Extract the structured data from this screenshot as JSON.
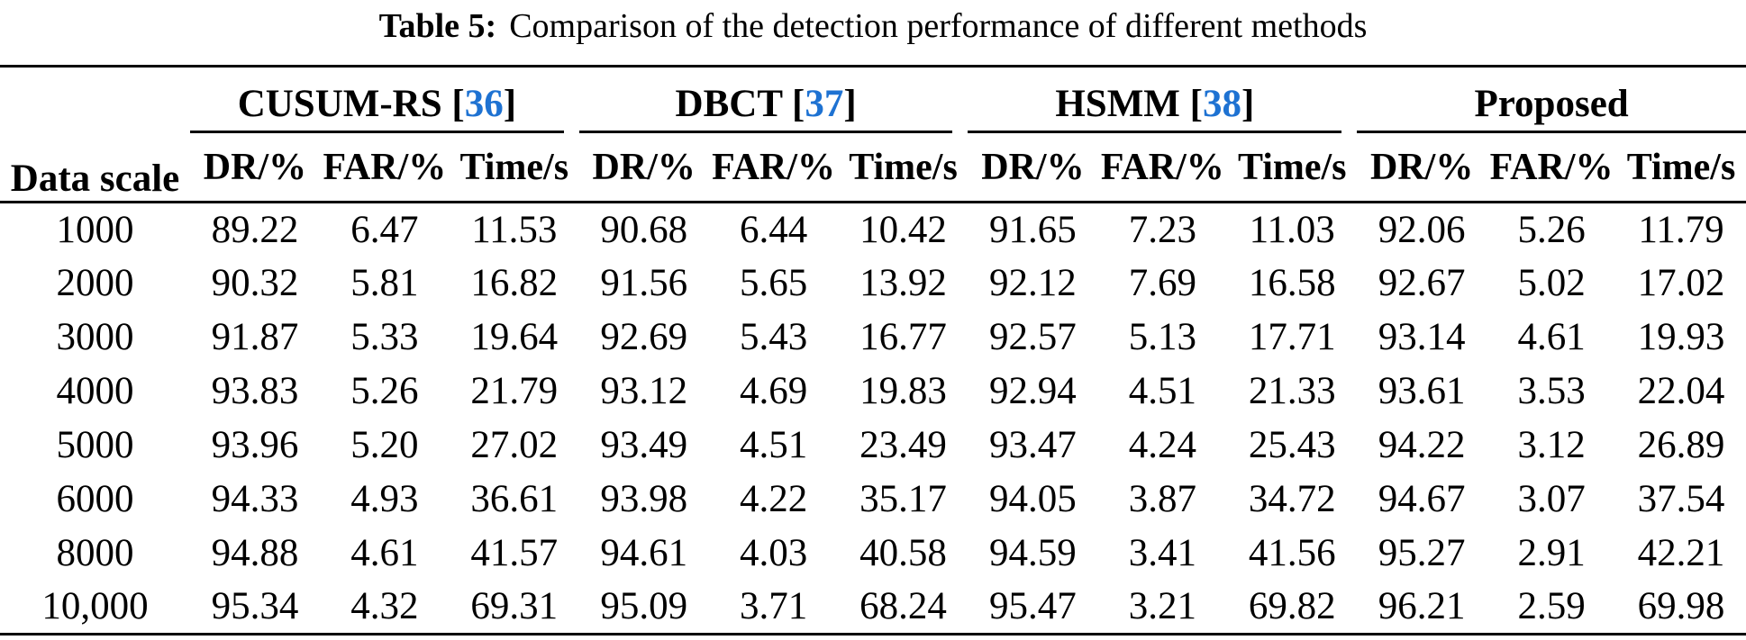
{
  "caption": {
    "label": "Table 5:",
    "text": "Comparison of the detection performance of different methods"
  },
  "table": {
    "row_header": "Data scale",
    "bracket_open": "[",
    "bracket_close": "]",
    "groups": [
      {
        "name": "CUSUM-RS",
        "citation": "36"
      },
      {
        "name": "DBCT",
        "citation": "37"
      },
      {
        "name": "HSMM",
        "citation": "38"
      },
      {
        "name": "Proposed",
        "citation": ""
      }
    ],
    "sub_headers": [
      "DR/%",
      "FAR/%",
      "Time/s"
    ],
    "rows": [
      {
        "scale": "1000",
        "values": [
          "89.22",
          "6.47",
          "11.53",
          "90.68",
          "6.44",
          "10.42",
          "91.65",
          "7.23",
          "11.03",
          "92.06",
          "5.26",
          "11.79"
        ]
      },
      {
        "scale": "2000",
        "values": [
          "90.32",
          "5.81",
          "16.82",
          "91.56",
          "5.65",
          "13.92",
          "92.12",
          "7.69",
          "16.58",
          "92.67",
          "5.02",
          "17.02"
        ]
      },
      {
        "scale": "3000",
        "values": [
          "91.87",
          "5.33",
          "19.64",
          "92.69",
          "5.43",
          "16.77",
          "92.57",
          "5.13",
          "17.71",
          "93.14",
          "4.61",
          "19.93"
        ]
      },
      {
        "scale": "4000",
        "values": [
          "93.83",
          "5.26",
          "21.79",
          "93.12",
          "4.69",
          "19.83",
          "92.94",
          "4.51",
          "21.33",
          "93.61",
          "3.53",
          "22.04"
        ]
      },
      {
        "scale": "5000",
        "values": [
          "93.96",
          "5.20",
          "27.02",
          "93.49",
          "4.51",
          "23.49",
          "93.47",
          "4.24",
          "25.43",
          "94.22",
          "3.12",
          "26.89"
        ]
      },
      {
        "scale": "6000",
        "values": [
          "94.33",
          "4.93",
          "36.61",
          "93.98",
          "4.22",
          "35.17",
          "94.05",
          "3.87",
          "34.72",
          "94.67",
          "3.07",
          "37.54"
        ]
      },
      {
        "scale": "8000",
        "values": [
          "94.88",
          "4.61",
          "41.57",
          "94.61",
          "4.03",
          "40.58",
          "94.59",
          "3.41",
          "41.56",
          "95.27",
          "2.91",
          "42.21"
        ]
      },
      {
        "scale": "10,000",
        "values": [
          "95.34",
          "4.32",
          "69.31",
          "95.09",
          "3.71",
          "68.24",
          "95.47",
          "3.21",
          "69.82",
          "96.21",
          "2.59",
          "69.98"
        ]
      }
    ]
  },
  "colors": {
    "text": "#000000",
    "rule": "#000000",
    "citation_blue": "#1E72D2",
    "background": "#FFFFFF"
  }
}
